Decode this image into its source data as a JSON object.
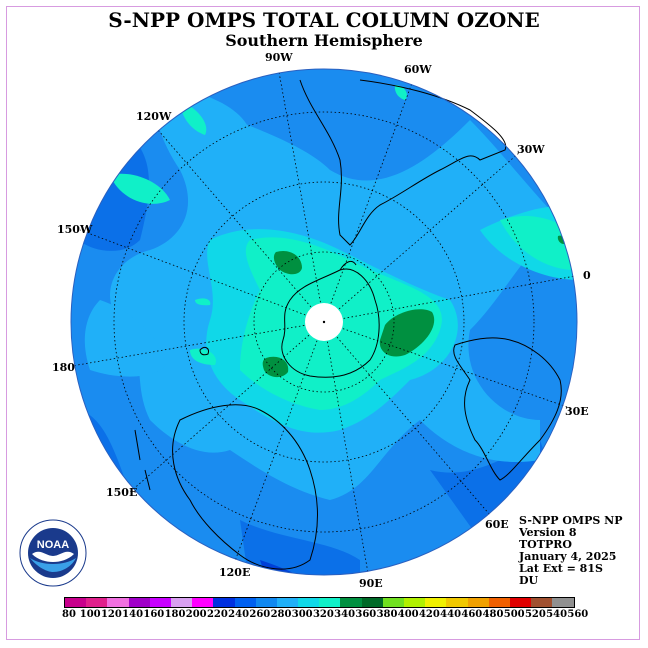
{
  "title": "S-NPP OMPS TOTAL COLUMN OZONE",
  "subtitle": "Southern Hemisphere",
  "longitude_labels": [
    "90W",
    "60W",
    "30W",
    "0",
    "30E",
    "60E",
    "90E",
    "120E",
    "150E",
    "180",
    "150W",
    "120W"
  ],
  "info": {
    "line1": "S-NPP OMPS NP",
    "line2": "Version 8",
    "line3": "TOTPRO",
    "line4": "January 4, 2025",
    "line5": "Lat Ext = 81S",
    "line6": "DU"
  },
  "logo_text": "NOAA",
  "colorbar": {
    "ticks": [
      "80",
      "100",
      "120",
      "140",
      "160",
      "180",
      "200",
      "220",
      "240",
      "260",
      "280",
      "300",
      "320",
      "340",
      "360",
      "380",
      "400",
      "420",
      "440",
      "460",
      "480",
      "500",
      "520",
      "540",
      "560"
    ],
    "colors": [
      "#c8008c",
      "#e0208c",
      "#f070e0",
      "#a000c8",
      "#c800ff",
      "#d8a0f0",
      "#ff00ff",
      "#0030e0",
      "#0060f0",
      "#1088f0",
      "#20b0f8",
      "#10d8e8",
      "#10f0c8",
      "#009040",
      "#006a28",
      "#70e020",
      "#b0f000",
      "#f0f000",
      "#f0c800",
      "#f0a000",
      "#f06000",
      "#e00000",
      "#a05030",
      "#909090",
      "#606060"
    ],
    "units": "DU"
  },
  "colors": {
    "ocean_level_240_260": "#1a8cf0",
    "level_260_280": "#20b0f8",
    "level_280_300": "#10d8e8",
    "level_300_320": "#10f0c8",
    "level_320_340": "#009040",
    "level_220_240": "#0060f0"
  }
}
